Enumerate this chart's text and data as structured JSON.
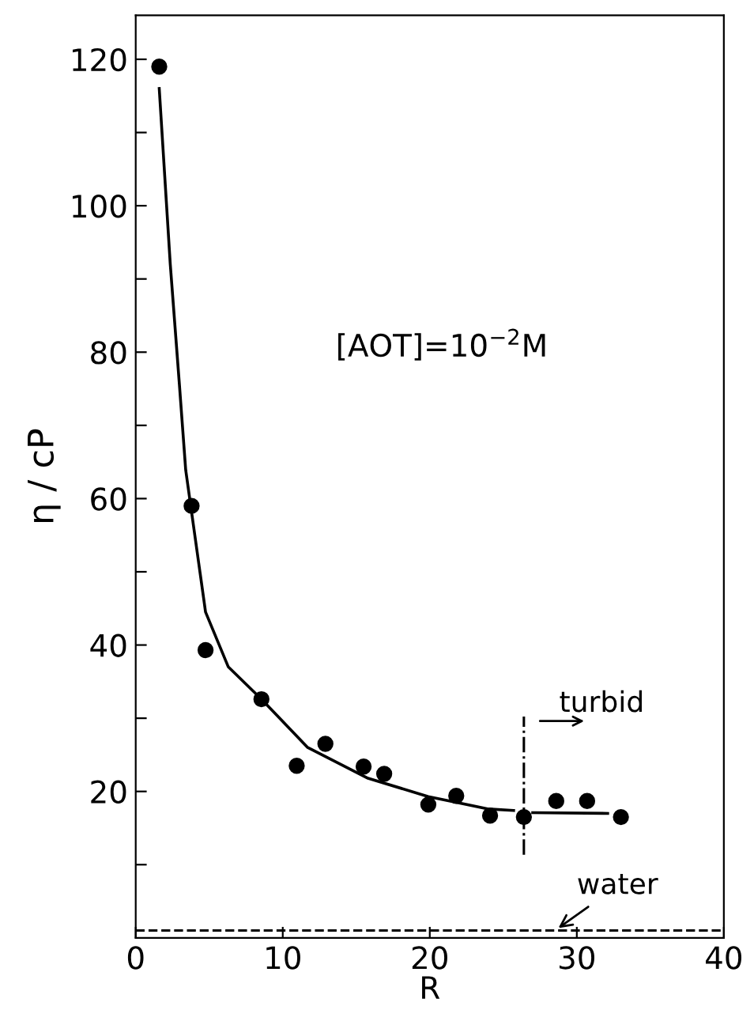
{
  "chart_data": {
    "type": "scatter",
    "xlabel": "R",
    "ylabel": "η / cP",
    "xlim": [
      0,
      40
    ],
    "ylim": [
      0,
      126
    ],
    "xticks": [
      0,
      10,
      20,
      30,
      40
    ],
    "yticks": [
      {
        "value": 10,
        "label": null
      },
      20,
      {
        "value": 30,
        "label": null
      },
      40,
      {
        "value": 50,
        "label": null
      },
      60,
      {
        "value": 70,
        "label": null
      },
      80,
      {
        "value": 90,
        "label": null
      },
      100,
      {
        "value": 110,
        "label": null
      },
      120
    ],
    "marker": "circle",
    "grid": false,
    "legend": false,
    "series": [
      {
        "color": "#000000",
        "x": [
          1.6,
          3.8,
          4.75,
          8.55,
          10.95,
          12.9,
          15.5,
          16.9,
          19.9,
          21.8,
          24.1,
          26.4,
          28.6,
          30.7,
          33.0
        ],
        "values": [
          119,
          59,
          39.3,
          32.6,
          23.5,
          26.5,
          23.4,
          22.4,
          18.2,
          19.4,
          16.7,
          16.5,
          18.7,
          18.7,
          16.5
        ]
      },
      {
        "type": "line",
        "marker": "none",
        "color": "#000000",
        "line_style": "solid",
        "x": [
          1.6,
          2.35,
          2.97,
          3.4,
          4.75,
          6.3,
          8.55,
          11.7,
          15.8,
          19.9,
          24,
          25.7,
          26.4,
          27,
          32.1
        ],
        "values": [
          116,
          92,
          75.6,
          63.9,
          44.5,
          37,
          32.6,
          26,
          21.8,
          19.3,
          17.6,
          17.4,
          null,
          17.1,
          17.0
        ]
      }
    ],
    "ref_lines": [
      {
        "axis": "x",
        "value": 26.4,
        "line_style": "dashdot",
        "color": "#000000"
      },
      {
        "axis": "y",
        "value": 1,
        "label": "water",
        "line_style": "dashed",
        "color": "#000000"
      }
    ],
    "annotations": [
      "[AOT]=10$^{−2}$M",
      "turbid"
    ]
  }
}
